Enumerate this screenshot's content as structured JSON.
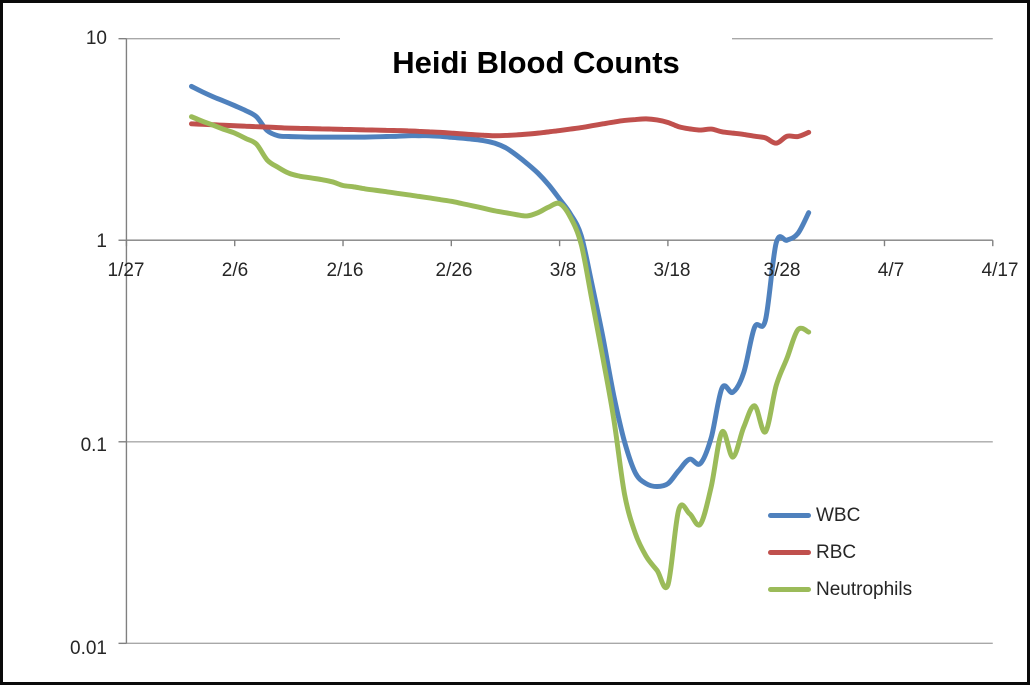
{
  "chart_data": {
    "type": "line",
    "title": "Heidi Blood Counts",
    "xlabel": "",
    "ylabel": "",
    "y_scale": "log10",
    "grid": true,
    "legend_position": "inside-lower-right",
    "background_color": "#FFFFFF",
    "frame_border_color": "#0A0A0A",
    "axis_color": "#808080",
    "gridline_color": "#A8A8A8",
    "text_color": "#262626",
    "y_tick_labels": [
      "10",
      "1",
      "0.1",
      "0.01"
    ],
    "y_tick_values": [
      10,
      1,
      0.1,
      0.01
    ],
    "x_tick_labels": [
      "1/27",
      "2/6",
      "2/16",
      "2/26",
      "3/8",
      "3/18",
      "3/28",
      "4/7",
      "4/17"
    ],
    "x_range_days": 80,
    "dates": [
      "2/2",
      "2/3",
      "2/4",
      "2/5",
      "2/6",
      "2/7",
      "2/8",
      "2/9",
      "2/10",
      "2/11",
      "2/12",
      "2/13",
      "2/14",
      "2/15",
      "2/16",
      "2/17",
      "2/18",
      "2/19",
      "2/20",
      "2/21",
      "2/22",
      "2/23",
      "2/24",
      "2/25",
      "2/26",
      "2/27",
      "2/28",
      "3/1",
      "3/2",
      "3/3",
      "3/4",
      "3/5",
      "3/6",
      "3/7",
      "3/8",
      "3/9",
      "3/10",
      "3/11",
      "3/12",
      "3/13",
      "3/14",
      "3/15",
      "3/16",
      "3/17",
      "3/18",
      "3/19",
      "3/20",
      "3/21",
      "3/22",
      "3/23",
      "3/24",
      "3/25",
      "3/26",
      "3/27",
      "3/28",
      "3/29",
      "3/30",
      "3/31"
    ],
    "series": [
      {
        "name": "WBC",
        "color": "#4F81BD",
        "values": [
          5.8,
          5.45,
          5.15,
          4.9,
          4.65,
          4.4,
          4.1,
          3.5,
          3.3,
          3.27,
          3.26,
          3.25,
          3.25,
          3.25,
          3.25,
          3.25,
          3.25,
          3.26,
          3.27,
          3.28,
          3.3,
          3.3,
          3.3,
          3.28,
          3.24,
          3.21,
          3.17,
          3.12,
          3.03,
          2.88,
          2.65,
          2.4,
          2.15,
          1.88,
          1.6,
          1.35,
          1.05,
          0.6,
          0.33,
          0.17,
          0.1,
          0.07,
          0.062,
          0.06,
          0.062,
          0.072,
          0.082,
          0.078,
          0.105,
          0.185,
          0.176,
          0.22,
          0.37,
          0.4,
          0.97,
          1.0,
          1.08,
          1.37
        ]
      },
      {
        "name": "RBC",
        "color": "#C0504D",
        "values": [
          3.78,
          3.76,
          3.74,
          3.72,
          3.7,
          3.68,
          3.66,
          3.64,
          3.62,
          3.6,
          3.59,
          3.58,
          3.57,
          3.56,
          3.55,
          3.54,
          3.53,
          3.52,
          3.51,
          3.5,
          3.49,
          3.47,
          3.45,
          3.43,
          3.4,
          3.37,
          3.34,
          3.32,
          3.3,
          3.31,
          3.33,
          3.36,
          3.4,
          3.45,
          3.5,
          3.56,
          3.62,
          3.7,
          3.78,
          3.86,
          3.93,
          3.97,
          4.0,
          3.95,
          3.84,
          3.66,
          3.57,
          3.52,
          3.56,
          3.45,
          3.4,
          3.35,
          3.28,
          3.22,
          3.03,
          3.28,
          3.27,
          3.43
        ]
      },
      {
        "name": "Neutrophils",
        "color": "#9BBB59",
        "values": [
          4.1,
          3.9,
          3.72,
          3.55,
          3.4,
          3.2,
          3.0,
          2.5,
          2.3,
          2.15,
          2.08,
          2.04,
          2.0,
          1.95,
          1.87,
          1.84,
          1.8,
          1.77,
          1.74,
          1.71,
          1.68,
          1.65,
          1.62,
          1.59,
          1.56,
          1.52,
          1.48,
          1.44,
          1.4,
          1.37,
          1.34,
          1.32,
          1.37,
          1.46,
          1.52,
          1.3,
          0.95,
          0.5,
          0.26,
          0.13,
          0.055,
          0.035,
          0.027,
          0.023,
          0.0195,
          0.046,
          0.044,
          0.039,
          0.06,
          0.112,
          0.084,
          0.118,
          0.151,
          0.112,
          0.19,
          0.26,
          0.36,
          0.35
        ]
      }
    ]
  }
}
